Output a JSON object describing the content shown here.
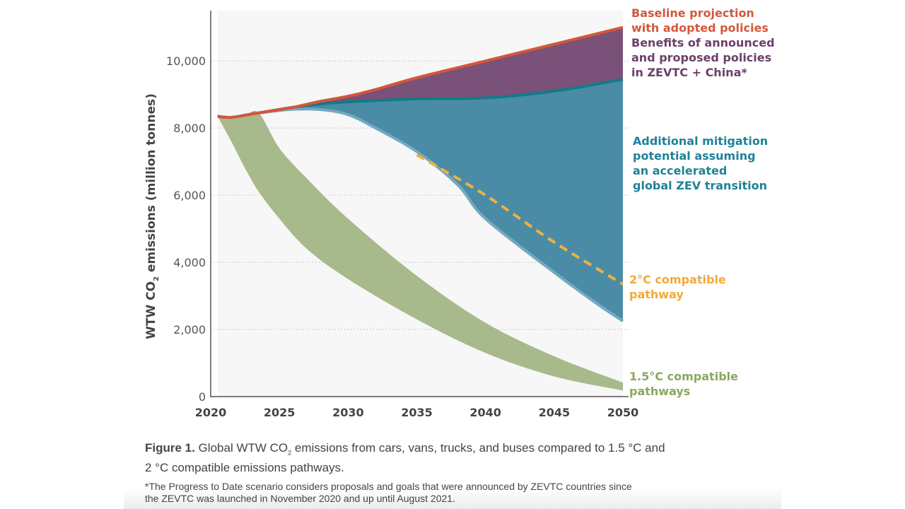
{
  "chart_data": {
    "type": "area",
    "ylabel": "WTW CO2 emissions (million tonnes)",
    "ylabel_main": "WTW CO",
    "ylabel_sub": "2",
    "ylabel_rest": " emissions (million tonnes)",
    "xlim": [
      2020,
      2050
    ],
    "ylim": [
      0,
      11500
    ],
    "xticks": [
      "2020",
      "2025",
      "2030",
      "2035",
      "2040",
      "2045",
      "2050"
    ],
    "xtick_values": [
      2020,
      2025,
      2030,
      2035,
      2040,
      2045,
      2050
    ],
    "yticks": [
      "0",
      "2,000",
      "4,000",
      "6,000",
      "8,000",
      "10,000"
    ],
    "ytick_values": [
      0,
      2000,
      4000,
      6000,
      8000,
      10000
    ],
    "grid": "horizontal dotted",
    "series": [
      {
        "name": "Baseline projection with adopted policies",
        "color": "#d4573a",
        "x": [
          2020.5,
          2021.5,
          2023,
          2024.5,
          2026,
          2028,
          2030,
          2032,
          2035,
          2040,
          2045,
          2050
        ],
        "values": [
          8350,
          8320,
          8420,
          8520,
          8620,
          8800,
          8950,
          9150,
          9500,
          10000,
          10500,
          11000
        ]
      },
      {
        "name": "Benefits of announced and proposed policies in ZEVTC + China*",
        "color": "#7a5178",
        "x": [
          2020.5,
          2021.5,
          2023,
          2024.5,
          2026,
          2028,
          2030,
          2035,
          2040,
          2045,
          2050
        ],
        "values": [
          8350,
          8320,
          8420,
          8520,
          8620,
          8720,
          8780,
          8870,
          8900,
          9100,
          9450
        ],
        "line_color": "#137a8a"
      },
      {
        "name": "Additional mitigation potential assuming an accelerated global ZEV transition",
        "color": "#4a8ca5",
        "x": [
          2020.5,
          2021.5,
          2023,
          2024.5,
          2026,
          2028,
          2030,
          2032,
          2035,
          2038,
          2040,
          2045,
          2048,
          2050
        ],
        "values": [
          8350,
          8320,
          8420,
          8500,
          8560,
          8550,
          8400,
          8000,
          7300,
          6300,
          5300,
          3700,
          2800,
          2250
        ],
        "line_color": "#74a9c0"
      },
      {
        "name": "2°C compatible pathway",
        "color": "#f0b040",
        "x": [
          2035,
          2040,
          2045,
          2050
        ],
        "values": [
          7200,
          6000,
          4600,
          3350
        ]
      },
      {
        "name": "1.5°C compatible pathways",
        "color": "#a8ba8c",
        "x": [
          2020.5,
          2021.5,
          2022.5,
          2023.5,
          2025,
          2027,
          2030,
          2035,
          2040,
          2045,
          2050
        ],
        "upper": [
          8350,
          8320,
          8380,
          8450,
          7400,
          6500,
          5300,
          3600,
          2200,
          1200,
          420
        ],
        "lower": [
          8350,
          7600,
          6800,
          6100,
          5300,
          4400,
          3500,
          2300,
          1300,
          600,
          180
        ]
      }
    ],
    "annotations": [
      {
        "text": "Baseline projection\nwith adopted policies",
        "color": "#d4573a"
      },
      {
        "text": "Benefits of announced\nand proposed policies\nin ZEVTC + China*",
        "color": "#6b3f69"
      },
      {
        "text": "Additional mitigation\npotential assuming\nan accelerated\nglobal ZEV transition",
        "color": "#1f8298"
      },
      {
        "text": "2°C compatible\npathway",
        "color": "#f0aa3a"
      },
      {
        "text": "1.5°C compatible\npathways",
        "color": "#8aa860"
      }
    ]
  },
  "caption": {
    "label": "Figure 1.",
    "text_a": " Global WTW CO",
    "sub": "2",
    "text_b": " emissions from cars, vans, trucks, and buses compared to 1.5 °C and",
    "line2": "2 °C compatible emissions pathways.",
    "footnote1": "*The Progress to Date scenario considers proposals and goals that were announced by ZEVTC countries since",
    "footnote2": "the ZEVTC was launched in November 2020 and up until August 2021."
  }
}
